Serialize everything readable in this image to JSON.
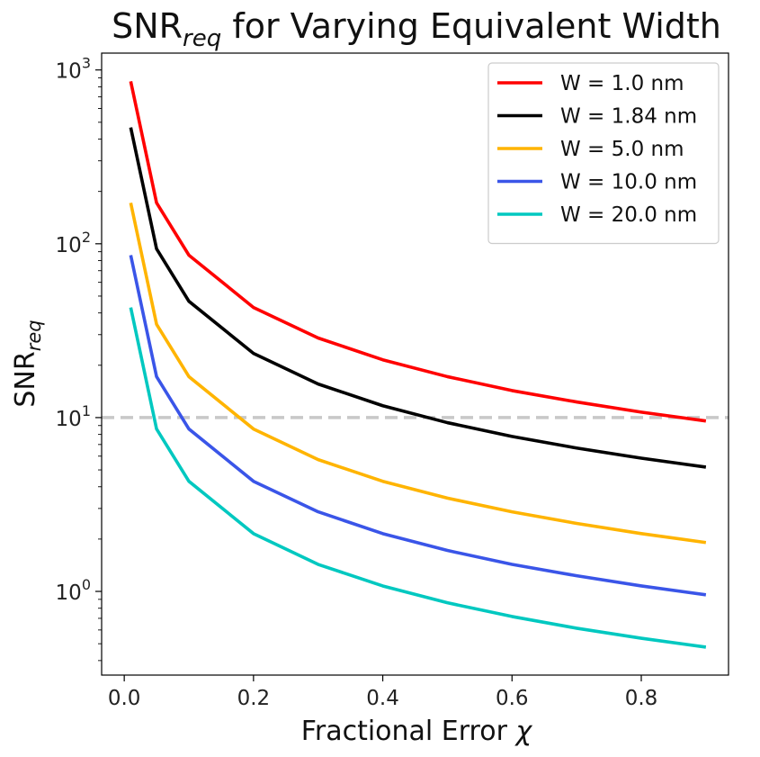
{
  "chart_data": {
    "type": "line",
    "title": {
      "base": "SNR",
      "sub": "req",
      "rest": " for Varying Equivalent Width"
    },
    "xlabel": {
      "text": "Fractional Error ",
      "symbol": "χ"
    },
    "ylabel": {
      "base": "SNR",
      "sub": "req"
    },
    "xlim": [
      -0.035,
      0.935
    ],
    "ylim": [
      0.33,
      1250
    ],
    "yscale": "log",
    "xticks": [
      {
        "value": 0.0,
        "label": "0.0"
      },
      {
        "value": 0.2,
        "label": "0.2"
      },
      {
        "value": 0.4,
        "label": "0.4"
      },
      {
        "value": 0.6,
        "label": "0.6"
      },
      {
        "value": 0.8,
        "label": "0.8"
      }
    ],
    "yticks": [
      {
        "value": 1,
        "base": "10",
        "exp": "0"
      },
      {
        "value": 10,
        "base": "10",
        "exp": "1"
      },
      {
        "value": 100,
        "base": "10",
        "exp": "2"
      },
      {
        "value": 1000,
        "base": "10",
        "exp": "3"
      }
    ],
    "reference_line": {
      "y": 10,
      "color": "#c8c8c8",
      "style": "dashed"
    },
    "grid": false,
    "legend_position": "top-right",
    "x": [
      0.01,
      0.05,
      0.1,
      0.2,
      0.3,
      0.4,
      0.5,
      0.6,
      0.7,
      0.8,
      0.9
    ],
    "series": [
      {
        "name": "W = 1.0 nm",
        "color": "#ff0000",
        "values": [
          860,
          172,
          86,
          43,
          28.7,
          21.5,
          17.2,
          14.3,
          12.3,
          10.75,
          9.56
        ]
      },
      {
        "name": "W = 1.84 nm",
        "color": "#000000",
        "values": [
          467,
          93.5,
          46.7,
          23.4,
          15.6,
          11.7,
          9.35,
          7.79,
          6.68,
          5.84,
          5.19
        ]
      },
      {
        "name": "W = 5.0 nm",
        "color": "#ffb400",
        "values": [
          172,
          34.4,
          17.2,
          8.6,
          5.73,
          4.3,
          3.44,
          2.87,
          2.46,
          2.15,
          1.91
        ]
      },
      {
        "name": "W = 10.0 nm",
        "color": "#3a55e8",
        "values": [
          86,
          17.2,
          8.6,
          4.3,
          2.87,
          2.15,
          1.72,
          1.43,
          1.23,
          1.075,
          0.956
        ]
      },
      {
        "name": "W = 20.0 nm",
        "color": "#00c8c0",
        "values": [
          43,
          8.6,
          4.3,
          2.15,
          1.43,
          1.075,
          0.86,
          0.717,
          0.614,
          0.5375,
          0.478
        ]
      }
    ]
  }
}
